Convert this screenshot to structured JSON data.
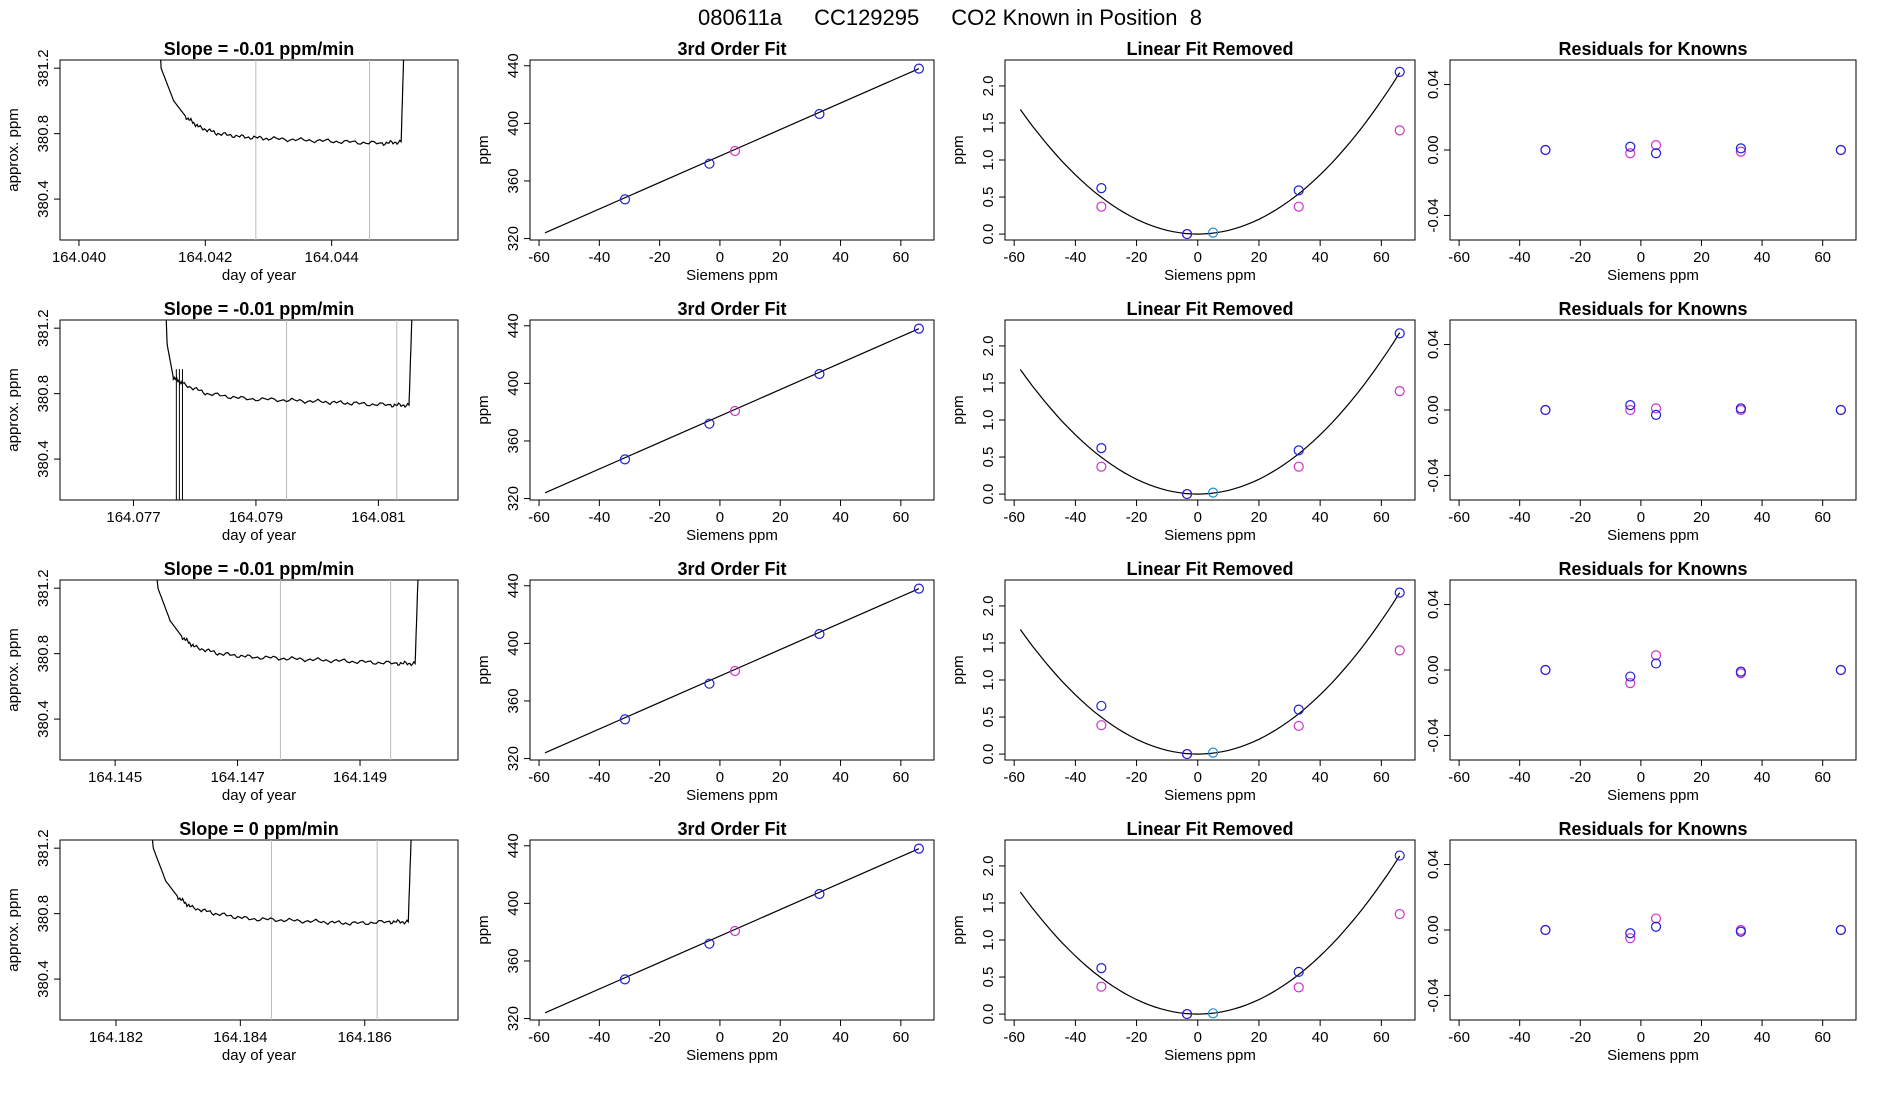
{
  "header": {
    "run_id": "080611a",
    "tank_id": "CC129295",
    "description": "CO2 Known in Position  8"
  },
  "colors": {
    "line": "#000000",
    "vline": "#bbbbbb",
    "known": "#1f1fd6",
    "fit": "#cc33cc",
    "sample": "#1a8fd6"
  },
  "chart_data": [
    {
      "type": "line",
      "row": 0,
      "col": 0,
      "title": "Slope =  -0.01  ppm/min",
      "xlabel": "day of year",
      "ylabel": "approx. ppm",
      "xlim": [
        164.0397,
        164.046
      ],
      "ylim": [
        380.15,
        381.25
      ],
      "xticks": [
        164.04,
        164.042,
        164.044
      ],
      "xtick_labels": [
        "164.040",
        "164.042",
        "164.044"
      ],
      "yticks": [
        380.4,
        380.8,
        381.2
      ],
      "ytick_labels": [
        "380.4",
        "380.8",
        "381.2"
      ],
      "x_start": 164.04125,
      "x_end": 164.0453,
      "y_base": 380.75,
      "vlines": [
        164.0428,
        164.0446
      ],
      "trace": [
        [
          164.04125,
          381.6
        ],
        [
          164.0413,
          381.2
        ],
        [
          164.0415,
          381.0
        ],
        [
          164.0417,
          380.9
        ],
        [
          164.0419,
          380.84
        ],
        [
          164.0422,
          380.8
        ],
        [
          164.0426,
          380.78
        ],
        [
          164.043,
          380.77
        ],
        [
          164.0436,
          380.76
        ],
        [
          164.0442,
          380.75
        ],
        [
          164.0448,
          380.74
        ],
        [
          164.0451,
          380.75
        ],
        [
          164.04515,
          381.4
        ],
        [
          164.0452,
          381.6
        ]
      ]
    },
    {
      "type": "scatter",
      "row": 0,
      "col": 1,
      "title": "3rd Order Fit",
      "xlabel": "Siemens ppm",
      "ylabel": "ppm",
      "xlim": [
        -63,
        71
      ],
      "ylim": [
        319,
        444
      ],
      "xticks": [
        -60,
        -40,
        -20,
        0,
        20,
        40,
        60
      ],
      "xtick_labels": [
        "-60",
        "-40",
        "-20",
        "0",
        "20",
        "40",
        "60"
      ],
      "yticks": [
        320,
        360,
        400,
        440
      ],
      "ytick_labels": [
        "320",
        "360",
        "400",
        "440"
      ],
      "knowns_x": [
        -31.5,
        -3.5,
        33,
        66
      ],
      "knowns_y": [
        347.2,
        372.0,
        406.5,
        438.0
      ],
      "sample_x": [
        5
      ],
      "sample_y": [
        380.8
      ],
      "fit_line": [
        [
          -58,
          324
        ],
        [
          66,
          438
        ]
      ]
    },
    {
      "type": "scatter",
      "row": 0,
      "col": 2,
      "title": "Linear Fit Removed",
      "xlabel": "Siemens ppm",
      "ylabel": "ppm",
      "xlim": [
        -63,
        71
      ],
      "ylim": [
        -0.08,
        2.35
      ],
      "xticks": [
        -60,
        -40,
        -20,
        0,
        20,
        40,
        60
      ],
      "xtick_labels": [
        "-60",
        "-40",
        "-20",
        "0",
        "20",
        "40",
        "60"
      ],
      "yticks": [
        0.0,
        0.5,
        1.0,
        1.5,
        2.0
      ],
      "ytick_labels": [
        "0.0",
        "0.5",
        "1.0",
        "1.5",
        "2.0"
      ],
      "knowns_x": [
        -31.5,
        -3.5,
        33,
        66
      ],
      "knowns_y": [
        0.62,
        0.0,
        0.59,
        2.19
      ],
      "fit_x": [
        -31.5,
        -3.5,
        33,
        66
      ],
      "fit_y": [
        0.37,
        0.0,
        0.37,
        1.4
      ],
      "sample_x": [
        5
      ],
      "sample_y": [
        0.02
      ],
      "curve": {
        "vertex_x": 0,
        "coef": 0.0005,
        "x_from": -58,
        "x_to": 66
      }
    },
    {
      "type": "scatter",
      "row": 0,
      "col": 3,
      "title": "Residuals for Knowns",
      "xlabel": "Siemens ppm",
      "ylabel": "",
      "xlim": [
        -63,
        71
      ],
      "ylim": [
        -0.055,
        0.055
      ],
      "xticks": [
        -60,
        -40,
        -20,
        0,
        20,
        40,
        60
      ],
      "xtick_labels": [
        "-60",
        "-40",
        "-20",
        "0",
        "20",
        "40",
        "60"
      ],
      "yticks": [
        -0.04,
        0.0,
        0.04
      ],
      "ytick_labels": [
        "-0.04",
        "0.00",
        "0.04"
      ],
      "knowns_x": [
        -31.5,
        -3.5,
        5,
        33,
        66
      ],
      "knowns_y": [
        0.0,
        0.002,
        -0.002,
        0.001,
        0.0
      ],
      "fit_x": [
        -31.5,
        -3.5,
        5,
        33,
        66
      ],
      "fit_y": [
        0.0,
        -0.002,
        0.003,
        -0.001,
        0.0
      ]
    },
    {
      "type": "line",
      "row": 1,
      "col": 0,
      "title": "Slope =  -0.01  ppm/min",
      "xlabel": "day of year",
      "ylabel": "approx. ppm",
      "xlim": [
        164.0758,
        164.0823
      ],
      "ylim": [
        380.15,
        381.25
      ],
      "xticks": [
        164.077,
        164.079,
        164.081
      ],
      "xtick_labels": [
        "164.077",
        "164.079",
        "164.081"
      ],
      "yticks": [
        380.4,
        380.8,
        381.2
      ],
      "ytick_labels": [
        "380.4",
        "380.8",
        "381.2"
      ],
      "vlines": [
        164.0795,
        164.0813
      ],
      "trace": [
        [
          164.0775,
          381.6
        ],
        [
          164.07755,
          381.1
        ],
        [
          164.0776,
          381.0
        ],
        [
          164.07765,
          380.9
        ],
        [
          164.0778,
          380.86
        ],
        [
          164.0782,
          380.8
        ],
        [
          164.0788,
          380.77
        ],
        [
          164.0795,
          380.76
        ],
        [
          164.0801,
          380.75
        ],
        [
          164.0806,
          380.74
        ],
        [
          164.0812,
          380.73
        ],
        [
          164.0815,
          380.73
        ],
        [
          164.08155,
          381.3
        ],
        [
          164.0816,
          381.6
        ]
      ],
      "spikes": [
        164.0777,
        164.07775,
        164.0778
      ]
    },
    {
      "type": "scatter",
      "row": 1,
      "col": 1,
      "title": "3rd Order Fit",
      "xlabel": "Siemens ppm",
      "ylabel": "ppm",
      "xlim": [
        -63,
        71
      ],
      "ylim": [
        319,
        444
      ],
      "xticks": [
        -60,
        -40,
        -20,
        0,
        20,
        40,
        60
      ],
      "xtick_labels": [
        "-60",
        "-40",
        "-20",
        "0",
        "20",
        "40",
        "60"
      ],
      "yticks": [
        320,
        360,
        400,
        440
      ],
      "ytick_labels": [
        "320",
        "360",
        "400",
        "440"
      ],
      "knowns_x": [
        -31.5,
        -3.5,
        33,
        66
      ],
      "knowns_y": [
        347.2,
        372.0,
        406.5,
        438.0
      ],
      "sample_x": [
        5
      ],
      "sample_y": [
        380.8
      ],
      "fit_line": [
        [
          -58,
          324
        ],
        [
          66,
          438
        ]
      ]
    },
    {
      "type": "scatter",
      "row": 1,
      "col": 2,
      "title": "Linear Fit Removed",
      "xlabel": "Siemens ppm",
      "ylabel": "ppm",
      "xlim": [
        -63,
        71
      ],
      "ylim": [
        -0.08,
        2.35
      ],
      "xticks": [
        -60,
        -40,
        -20,
        0,
        20,
        40,
        60
      ],
      "xtick_labels": [
        "-60",
        "-40",
        "-20",
        "0",
        "20",
        "40",
        "60"
      ],
      "yticks": [
        0.0,
        0.5,
        1.0,
        1.5,
        2.0
      ],
      "ytick_labels": [
        "0.0",
        "0.5",
        "1.0",
        "1.5",
        "2.0"
      ],
      "knowns_x": [
        -31.5,
        -3.5,
        33,
        66
      ],
      "knowns_y": [
        0.62,
        0.0,
        0.59,
        2.17
      ],
      "fit_x": [
        -31.5,
        -3.5,
        33,
        66
      ],
      "fit_y": [
        0.37,
        0.0,
        0.37,
        1.39
      ],
      "sample_x": [
        5
      ],
      "sample_y": [
        0.02
      ],
      "curve": {
        "vertex_x": 0,
        "coef": 0.0005,
        "x_from": -58,
        "x_to": 66
      }
    },
    {
      "type": "scatter",
      "row": 1,
      "col": 3,
      "title": "Residuals for Knowns",
      "xlabel": "Siemens ppm",
      "ylabel": "",
      "xlim": [
        -63,
        71
      ],
      "ylim": [
        -0.055,
        0.055
      ],
      "xticks": [
        -60,
        -40,
        -20,
        0,
        20,
        40,
        60
      ],
      "xtick_labels": [
        "-60",
        "-40",
        "-20",
        "0",
        "20",
        "40",
        "60"
      ],
      "yticks": [
        -0.04,
        0.0,
        0.04
      ],
      "ytick_labels": [
        "-0.04",
        "0.00",
        "0.04"
      ],
      "knowns_x": [
        -31.5,
        -3.5,
        5,
        33,
        66
      ],
      "knowns_y": [
        0.0,
        0.003,
        -0.003,
        0.001,
        0.0
      ],
      "fit_x": [
        -31.5,
        -3.5,
        5,
        33,
        66
      ],
      "fit_y": [
        0.0,
        0.0,
        0.001,
        0.0,
        0.0
      ]
    },
    {
      "type": "line",
      "row": 2,
      "col": 0,
      "title": "Slope =  -0.01  ppm/min",
      "xlabel": "day of year",
      "ylabel": "approx. ppm",
      "xlim": [
        164.1441,
        164.1506
      ],
      "ylim": [
        380.15,
        381.25
      ],
      "xticks": [
        164.145,
        164.147,
        164.149
      ],
      "xtick_labels": [
        "164.145",
        "164.147",
        "164.149"
      ],
      "yticks": [
        380.4,
        380.8,
        381.2
      ],
      "ytick_labels": [
        "380.4",
        "380.8",
        "381.2"
      ],
      "vlines": [
        164.1477,
        164.1495
      ],
      "trace": [
        [
          164.1456,
          381.6
        ],
        [
          164.1457,
          381.2
        ],
        [
          164.1459,
          381.0
        ],
        [
          164.1461,
          380.9
        ],
        [
          164.1463,
          380.84
        ],
        [
          164.1467,
          380.8
        ],
        [
          164.1472,
          380.78
        ],
        [
          164.1478,
          380.77
        ],
        [
          164.1484,
          380.76
        ],
        [
          164.149,
          380.75
        ],
        [
          164.1496,
          380.74
        ],
        [
          164.1499,
          380.74
        ],
        [
          164.14995,
          381.3
        ],
        [
          164.15,
          381.6
        ]
      ]
    },
    {
      "type": "scatter",
      "row": 2,
      "col": 1,
      "title": "3rd Order Fit",
      "xlabel": "Siemens ppm",
      "ylabel": "ppm",
      "xlim": [
        -63,
        71
      ],
      "ylim": [
        319,
        444
      ],
      "xticks": [
        -60,
        -40,
        -20,
        0,
        20,
        40,
        60
      ],
      "xtick_labels": [
        "-60",
        "-40",
        "-20",
        "0",
        "20",
        "40",
        "60"
      ],
      "yticks": [
        320,
        360,
        400,
        440
      ],
      "ytick_labels": [
        "320",
        "360",
        "400",
        "440"
      ],
      "knowns_x": [
        -31.5,
        -3.5,
        33,
        66
      ],
      "knowns_y": [
        347.2,
        372.0,
        406.5,
        438.0
      ],
      "sample_x": [
        5
      ],
      "sample_y": [
        380.8
      ],
      "fit_line": [
        [
          -58,
          324
        ],
        [
          66,
          438
        ]
      ]
    },
    {
      "type": "scatter",
      "row": 2,
      "col": 2,
      "title": "Linear Fit Removed",
      "xlabel": "Siemens ppm",
      "ylabel": "ppm",
      "xlim": [
        -63,
        71
      ],
      "ylim": [
        -0.08,
        2.35
      ],
      "xticks": [
        -60,
        -40,
        -20,
        0,
        20,
        40,
        60
      ],
      "xtick_labels": [
        "-60",
        "-40",
        "-20",
        "0",
        "20",
        "40",
        "60"
      ],
      "yticks": [
        0.0,
        0.5,
        1.0,
        1.5,
        2.0
      ],
      "ytick_labels": [
        "0.0",
        "0.5",
        "1.0",
        "1.5",
        "2.0"
      ],
      "knowns_x": [
        -31.5,
        -3.5,
        33,
        66
      ],
      "knowns_y": [
        0.65,
        0.0,
        0.6,
        2.18
      ],
      "fit_x": [
        -31.5,
        -3.5,
        33,
        66
      ],
      "fit_y": [
        0.39,
        0.0,
        0.38,
        1.4
      ],
      "sample_x": [
        5
      ],
      "sample_y": [
        0.02
      ],
      "curve": {
        "vertex_x": 0,
        "coef": 0.0005,
        "x_from": -58,
        "x_to": 66
      }
    },
    {
      "type": "scatter",
      "row": 2,
      "col": 3,
      "title": "Residuals for Knowns",
      "xlabel": "Siemens ppm",
      "ylabel": "",
      "xlim": [
        -63,
        71
      ],
      "ylim": [
        -0.055,
        0.055
      ],
      "xticks": [
        -60,
        -40,
        -20,
        0,
        20,
        40,
        60
      ],
      "xtick_labels": [
        "-60",
        "-40",
        "-20",
        "0",
        "20",
        "40",
        "60"
      ],
      "yticks": [
        -0.04,
        0.0,
        0.04
      ],
      "ytick_labels": [
        "-0.04",
        "0.00",
        "0.04"
      ],
      "knowns_x": [
        -31.5,
        -3.5,
        5,
        33,
        66
      ],
      "knowns_y": [
        0.0,
        -0.004,
        0.004,
        -0.001,
        0.0
      ],
      "fit_x": [
        -31.5,
        -3.5,
        5,
        33,
        66
      ],
      "fit_y": [
        0.0,
        -0.008,
        0.009,
        -0.002,
        0.0
      ]
    },
    {
      "type": "line",
      "row": 3,
      "col": 0,
      "title": "Slope =  0  ppm/min",
      "xlabel": "day of year",
      "ylabel": "approx. ppm",
      "xlim": [
        164.1811,
        164.1875
      ],
      "ylim": [
        380.15,
        381.25
      ],
      "xticks": [
        164.182,
        164.184,
        164.186
      ],
      "xtick_labels": [
        "164.182",
        "164.184",
        "164.186"
      ],
      "yticks": [
        380.4,
        380.8,
        381.2
      ],
      "ytick_labels": [
        "380.4",
        "380.8",
        "381.2"
      ],
      "vlines": [
        164.1845,
        164.1862
      ],
      "trace": [
        [
          164.1825,
          381.6
        ],
        [
          164.1826,
          381.2
        ],
        [
          164.1828,
          381.0
        ],
        [
          164.183,
          380.9
        ],
        [
          164.1832,
          380.84
        ],
        [
          164.1836,
          380.8
        ],
        [
          164.1841,
          380.77
        ],
        [
          164.1847,
          380.76
        ],
        [
          164.1853,
          380.75
        ],
        [
          164.1858,
          380.74
        ],
        [
          164.1864,
          380.75
        ],
        [
          164.1867,
          380.75
        ],
        [
          164.18675,
          381.3
        ],
        [
          164.1868,
          381.6
        ]
      ]
    },
    {
      "type": "scatter",
      "row": 3,
      "col": 1,
      "title": "3rd Order Fit",
      "xlabel": "Siemens ppm",
      "ylabel": "ppm",
      "xlim": [
        -63,
        71
      ],
      "ylim": [
        319,
        444
      ],
      "xticks": [
        -60,
        -40,
        -20,
        0,
        20,
        40,
        60
      ],
      "xtick_labels": [
        "-60",
        "-40",
        "-20",
        "0",
        "20",
        "40",
        "60"
      ],
      "yticks": [
        320,
        360,
        400,
        440
      ],
      "ytick_labels": [
        "320",
        "360",
        "400",
        "440"
      ],
      "knowns_x": [
        -31.5,
        -3.5,
        33,
        66
      ],
      "knowns_y": [
        347.2,
        372.0,
        406.5,
        438.0
      ],
      "sample_x": [
        5
      ],
      "sample_y": [
        380.8
      ],
      "fit_line": [
        [
          -58,
          324
        ],
        [
          66,
          438
        ]
      ]
    },
    {
      "type": "scatter",
      "row": 3,
      "col": 2,
      "title": "Linear Fit Removed",
      "xlabel": "Siemens ppm",
      "ylabel": "ppm",
      "xlim": [
        -63,
        71
      ],
      "ylim": [
        -0.08,
        2.35
      ],
      "xticks": [
        -60,
        -40,
        -20,
        0,
        20,
        40,
        60
      ],
      "xtick_labels": [
        "-60",
        "-40",
        "-20",
        "0",
        "20",
        "40",
        "60"
      ],
      "yticks": [
        0.0,
        0.5,
        1.0,
        1.5,
        2.0
      ],
      "ytick_labels": [
        "0.0",
        "0.5",
        "1.0",
        "1.5",
        "2.0"
      ],
      "knowns_x": [
        -31.5,
        -3.5,
        33,
        66
      ],
      "knowns_y": [
        0.62,
        0.0,
        0.57,
        2.14
      ],
      "fit_x": [
        -31.5,
        -3.5,
        33,
        66
      ],
      "fit_y": [
        0.37,
        0.0,
        0.36,
        1.35
      ],
      "sample_x": [
        5
      ],
      "sample_y": [
        0.01
      ],
      "curve": {
        "vertex_x": 0,
        "coef": 0.00049,
        "x_from": -58,
        "x_to": 66
      }
    },
    {
      "type": "scatter",
      "row": 3,
      "col": 3,
      "title": "Residuals for Knowns",
      "xlabel": "Siemens ppm",
      "ylabel": "",
      "xlim": [
        -63,
        71
      ],
      "ylim": [
        -0.055,
        0.055
      ],
      "xticks": [
        -60,
        -40,
        -20,
        0,
        20,
        40,
        60
      ],
      "xtick_labels": [
        "-60",
        "-40",
        "-20",
        "0",
        "20",
        "40",
        "60"
      ],
      "yticks": [
        -0.04,
        0.0,
        0.04
      ],
      "ytick_labels": [
        "-0.04",
        "0.00",
        "0.04"
      ],
      "knowns_x": [
        -31.5,
        -3.5,
        5,
        33,
        66
      ],
      "knowns_y": [
        0.0,
        -0.002,
        0.002,
        -0.001,
        0.0
      ],
      "fit_x": [
        -31.5,
        -3.5,
        5,
        33,
        66
      ],
      "fit_y": [
        0.0,
        -0.005,
        0.007,
        0.0,
        0.0
      ]
    }
  ]
}
